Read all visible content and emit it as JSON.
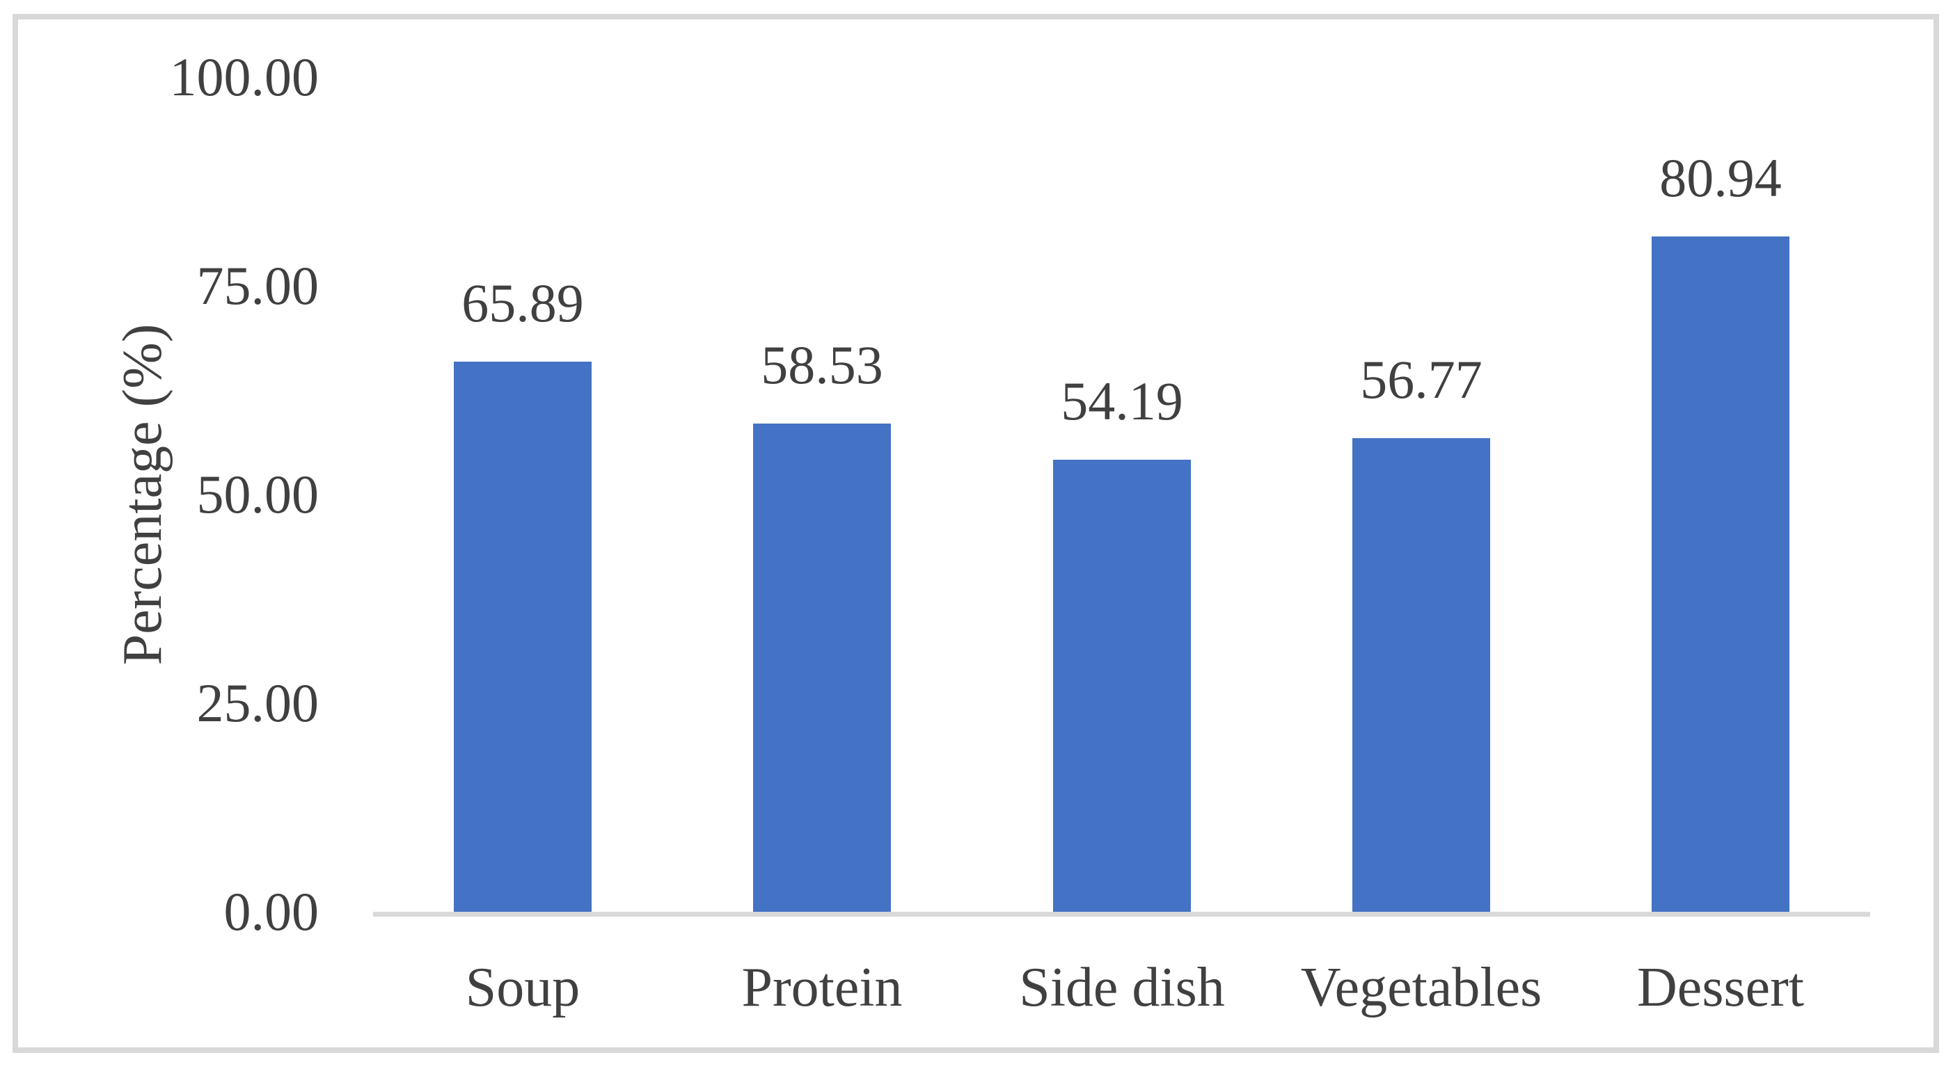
{
  "chart_data": {
    "type": "bar",
    "categories": [
      "Soup",
      "Protein",
      "Side dish",
      "Vegetables",
      "Dessert"
    ],
    "values": [
      65.89,
      58.53,
      54.19,
      56.77,
      80.94
    ],
    "data_labels": [
      "65.89",
      "58.53",
      "54.19",
      "56.77",
      "80.94"
    ],
    "title": "",
    "xlabel": "",
    "ylabel": "Percentage (%)",
    "ylim": [
      0,
      100
    ],
    "yticks": [
      0,
      25,
      50,
      75,
      100
    ],
    "ytick_labels": [
      "0.00",
      "25.00",
      "50.00",
      "75.00",
      "100.00"
    ],
    "grid": false,
    "legend": "none",
    "bar_color": "#4472c4",
    "axis_line_color": "#d9d9d9",
    "text_color": "#404040",
    "frame_border_color": "#d8d8d8"
  }
}
